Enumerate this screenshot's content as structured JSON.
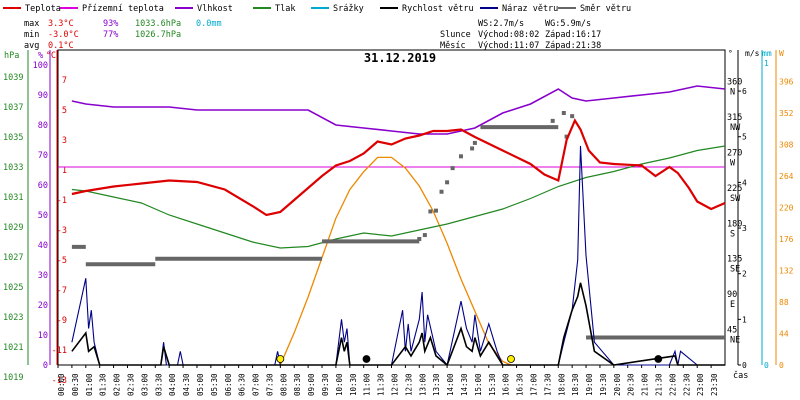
{
  "chart_data": {
    "type": "line",
    "date": "31.12.2019",
    "time_label": "čas",
    "legend": [
      {
        "name": "Teplota",
        "color": "#dd0000"
      },
      {
        "name": "Přízemní teplota",
        "color": "#dd00dd"
      },
      {
        "name": "Vlhkost",
        "color": "#8800cc"
      },
      {
        "name": "Tlak",
        "color": "#228822"
      },
      {
        "name": "Srážky",
        "color": "#00aacc"
      },
      {
        "name": "Rychlost větru",
        "color": "#000000"
      },
      {
        "name": "Náraz větru",
        "color": "#000088"
      },
      {
        "name": "Směr větru",
        "color": "#666666"
      }
    ],
    "stats": {
      "max": {
        "label": "max",
        "temp": "3.3°C",
        "hum": "93%",
        "press": "1033.6hPa",
        "rain": "0.0mm"
      },
      "min": {
        "label": "min",
        "temp": "-3.0°C",
        "hum": "77%",
        "press": "1026.7hPa"
      },
      "avg": {
        "label": "avg",
        "temp": "0.1°C"
      }
    },
    "info": {
      "ws": "WS:2.7m/s",
      "wg": "WG:5.9m/s",
      "sun_label": "Slunce",
      "sunrise": "Východ:08:02",
      "sunset": "Západ:16:17",
      "moon_label": "Měsíc",
      "moonrise": "Východ:11:07",
      "moonset": "Západ:21:38"
    },
    "axes": {
      "hpa": {
        "unit": "hPa",
        "color": "#228822",
        "ticks": [
          "1039",
          "1037",
          "1035",
          "1033",
          "1031",
          "1029",
          "1027",
          "1025",
          "1023",
          "1021",
          "1019"
        ],
        "range": [
          1019,
          1040
        ]
      },
      "pct": {
        "unit": "%",
        "color": "#8800cc",
        "ticks": [
          "100",
          "90",
          "80",
          "70",
          "60",
          "50",
          "40",
          "30",
          "20",
          "10",
          "0"
        ]
      },
      "temp": {
        "unit": "°C",
        "color": "#dd0000",
        "ticks": [
          "7",
          "5",
          "3",
          "1",
          "-1",
          "-3",
          "-5",
          "-7",
          "-9",
          "-11",
          "-13"
        ],
        "range": [
          -13,
          8
        ]
      },
      "dir": {
        "unit": "°",
        "ticks": [
          "360",
          "315",
          "270",
          "225",
          "180",
          "135",
          "90",
          "45"
        ],
        "labels": [
          "N",
          "NW",
          "W",
          "SW",
          "S",
          "SE",
          "E",
          "NE"
        ]
      },
      "ms": {
        "unit": "m/s",
        "ticks": [
          "6",
          "5",
          "4",
          "3",
          "2",
          "1",
          "0"
        ]
      },
      "mm": {
        "unit": "mm",
        "top": "1",
        "ticks": [
          "0"
        ]
      },
      "w": {
        "unit": "W",
        "ticks": [
          "396",
          "352",
          "308",
          "264",
          "220",
          "176",
          "132",
          "88",
          "44",
          "0"
        ]
      },
      "time": [
        "00:00",
        "00:30",
        "01:00",
        "01:30",
        "02:00",
        "02:30",
        "03:00",
        "03:30",
        "04:00",
        "04:30",
        "05:00",
        "05:30",
        "06:00",
        "06:30",
        "07:00",
        "07:30",
        "08:00",
        "08:30",
        "09:00",
        "09:30",
        "10:00",
        "10:30",
        "11:00",
        "11:30",
        "12:00",
        "12:30",
        "13:00",
        "13:30",
        "14:00",
        "14:30",
        "15:00",
        "15:30",
        "16:00",
        "16:30",
        "17:00",
        "17:30",
        "18:00",
        "18:30",
        "19:00",
        "19:30",
        "20:00",
        "20:30",
        "21:00",
        "21:30",
        "22:00",
        "22:30",
        "23:00",
        "23:30"
      ]
    },
    "series": {
      "temperature": {
        "x": [
          0.5,
          1,
          2,
          3,
          4,
          5,
          6,
          7,
          7.5,
          8,
          8.5,
          9,
          9.5,
          10,
          10.5,
          11,
          11.5,
          12,
          12.5,
          13,
          13.5,
          14,
          14.5,
          15,
          16,
          17,
          17.5,
          18,
          18.3,
          18.6,
          18.8,
          19.1,
          19.5,
          20,
          21,
          21.5,
          22,
          22.3,
          22.7,
          23,
          23.5,
          24
        ],
        "y": [
          -1.6,
          -1.4,
          -1.1,
          -0.9,
          -0.7,
          -0.8,
          -1.3,
          -2.4,
          -3.0,
          -2.8,
          -2.0,
          -1.2,
          -0.4,
          0.3,
          0.6,
          1.1,
          1.9,
          1.7,
          2.1,
          2.3,
          2.6,
          2.6,
          2.7,
          2.2,
          1.3,
          0.4,
          -0.3,
          -0.7,
          2.0,
          3.3,
          2.7,
          1.3,
          0.5,
          0.4,
          0.3,
          -0.4,
          0.2,
          -0.2,
          -1.2,
          -2.1,
          -2.6,
          -2.2
        ]
      },
      "humidity": {
        "x": [
          0.5,
          1,
          2,
          3,
          4,
          5,
          6,
          7,
          8,
          9,
          10,
          11,
          12,
          13,
          14,
          15,
          16,
          17,
          18,
          18.5,
          19,
          20,
          21,
          22,
          23,
          24
        ],
        "y": [
          88,
          87,
          86,
          86,
          86,
          85,
          85,
          85,
          85,
          85,
          80,
          79,
          78,
          77,
          77,
          79,
          84,
          87,
          92,
          89,
          88,
          89,
          90,
          91,
          93,
          92
        ]
      },
      "pressure": {
        "x": [
          0.5,
          1,
          2,
          3,
          4,
          5,
          6,
          7,
          8,
          9,
          10,
          11,
          12,
          13,
          14,
          15,
          16,
          17,
          18,
          19,
          20,
          21,
          22,
          23,
          24
        ],
        "y": [
          1030.7,
          1030.6,
          1030.2,
          1029.8,
          1029.0,
          1028.4,
          1027.8,
          1027.2,
          1026.8,
          1026.9,
          1027.4,
          1027.8,
          1027.6,
          1028.0,
          1028.4,
          1028.9,
          1029.4,
          1030.1,
          1030.9,
          1031.5,
          1031.9,
          1032.4,
          1032.8,
          1033.3,
          1033.6
        ]
      },
      "ground_temperature_y": 0.2,
      "wind_direction_steps": [
        {
          "x1": 0.5,
          "x2": 1.0,
          "y": 150
        },
        {
          "x1": 1.0,
          "x2": 3.5,
          "y": 128
        },
        {
          "x1": 3.5,
          "x2": 9.5,
          "y": 135
        },
        {
          "x1": 9.5,
          "x2": 13.0,
          "y": 157
        },
        {
          "x1": 15.2,
          "x2": 18.0,
          "y": 302
        },
        {
          "x1": 19.0,
          "x2": 24.0,
          "y": 35
        }
      ],
      "wind_direction_points": [
        {
          "x": 13.0,
          "y": 160
        },
        {
          "x": 13.2,
          "y": 165
        },
        {
          "x": 13.4,
          "y": 195
        },
        {
          "x": 13.6,
          "y": 196
        },
        {
          "x": 13.8,
          "y": 220
        },
        {
          "x": 14.0,
          "y": 232
        },
        {
          "x": 14.2,
          "y": 250
        },
        {
          "x": 14.5,
          "y": 265
        },
        {
          "x": 14.9,
          "y": 275
        },
        {
          "x": 15.0,
          "y": 282
        },
        {
          "x": 17.8,
          "y": 310
        },
        {
          "x": 18.2,
          "y": 320
        },
        {
          "x": 18.5,
          "y": 316
        },
        {
          "x": 18.3,
          "y": 290
        }
      ],
      "wind_gust": {
        "x": [
          0.5,
          1.0,
          1.1,
          1.2,
          1.3,
          1.5,
          2,
          3,
          3.7,
          3.8,
          3.9,
          4,
          4.3,
          4.4,
          4.5,
          6,
          7.8,
          7.9,
          8,
          10,
          10.2,
          10.3,
          10.4,
          10.5,
          12,
          12.4,
          12.5,
          12.6,
          12.7,
          13,
          13.1,
          13.2,
          13.3,
          13.6,
          14,
          14.5,
          14.7,
          14.9,
          15,
          15.2,
          15.5,
          15.8,
          16,
          17,
          18.0,
          18.2,
          18.5,
          18.7,
          18.8,
          19,
          19.3,
          20,
          22,
          22.2,
          22.3,
          22.4,
          23,
          24
        ],
        "y": [
          0.5,
          1.9,
          0.8,
          1.2,
          0.5,
          0,
          0,
          0,
          0,
          0.5,
          0,
          0,
          0,
          0.3,
          0,
          0,
          0,
          0.3,
          0,
          0,
          1.0,
          0.5,
          0.8,
          0,
          0,
          1.2,
          0.3,
          0.9,
          0.3,
          1.0,
          1.6,
          0.5,
          1.1,
          0.3,
          0,
          1.4,
          0.8,
          0.5,
          1.1,
          0.3,
          0.9,
          0.3,
          0,
          0,
          0,
          0.5,
          1.2,
          2.3,
          4.8,
          2.4,
          0.5,
          0,
          0,
          0.3,
          0,
          0.3,
          0,
          0
        ]
      },
      "wind_speed": {
        "x": [
          0.5,
          1.0,
          1.1,
          1.3,
          1.5,
          2,
          3,
          3.7,
          3.8,
          3.9,
          4,
          8,
          10,
          10.2,
          10.3,
          10.4,
          10.5,
          12,
          12.5,
          12.6,
          12.7,
          13,
          13.1,
          13.2,
          13.4,
          13.6,
          14,
          14.5,
          14.7,
          14.9,
          15,
          15.2,
          15.5,
          15.8,
          16,
          17,
          18.0,
          18.2,
          18.5,
          18.7,
          18.8,
          19,
          19.3,
          20,
          22.2,
          22.3,
          24
        ],
        "y": [
          0.3,
          0.7,
          0.3,
          0.4,
          0,
          0,
          0,
          0,
          0.4,
          0.2,
          0,
          0,
          0,
          0.6,
          0.3,
          0.5,
          0,
          0,
          0.4,
          0.3,
          0.2,
          0.5,
          0.7,
          0.3,
          0.6,
          0.2,
          0,
          0.8,
          0.4,
          0.3,
          0.6,
          0.2,
          0.5,
          0.2,
          0,
          0,
          0,
          0.6,
          1.2,
          1.5,
          1.8,
          1.3,
          0.3,
          0,
          0.2,
          0,
          0
        ]
      },
      "solar_radiation": {
        "x": [
          8.0,
          8.5,
          9,
          9.5,
          10,
          10.5,
          11,
          11.5,
          12,
          12.5,
          13,
          13.5,
          14,
          14.5,
          15,
          15.5,
          16,
          16.3
        ],
        "y": [
          0,
          45,
          95,
          150,
          205,
          245,
          270,
          290,
          290,
          275,
          250,
          215,
          170,
          120,
          75,
          30,
          5,
          0
        ]
      },
      "markers": [
        {
          "x": 8.0,
          "type": "sunrise"
        },
        {
          "x": 16.3,
          "type": "sunset"
        },
        {
          "x": 11.1,
          "type": "moonrise"
        },
        {
          "x": 21.6,
          "type": "moonset"
        }
      ]
    }
  }
}
